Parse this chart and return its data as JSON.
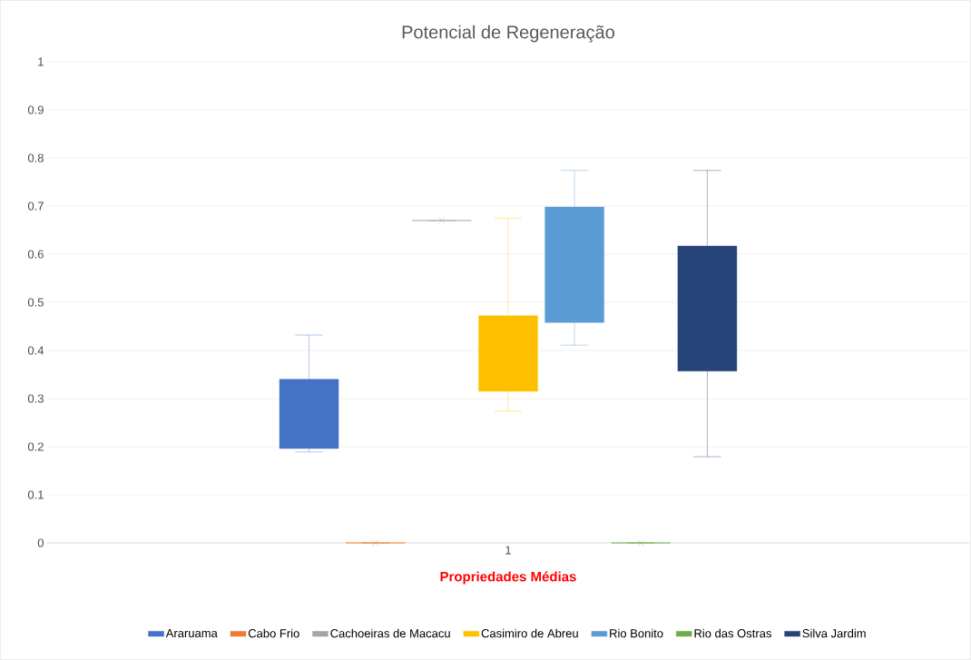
{
  "chart_data": {
    "type": "box",
    "title": "Potencial de Regeneração",
    "xlabel": "Propriedades Médias",
    "categories": [
      "1"
    ],
    "ylim": [
      0,
      1
    ],
    "yticks": [
      0,
      0.1,
      0.2,
      0.3,
      0.4,
      0.5,
      0.6,
      0.7,
      0.8,
      0.9,
      1
    ],
    "grid": "y",
    "legend": "bottom",
    "marker": "cross",
    "series": [
      {
        "name": "Araruama",
        "color": "#4472c4",
        "boxes": [
          {
            "low": 0.189,
            "q1": 0.196,
            "median": 0.277,
            "q3": 0.34,
            "high": 0.432,
            "mean": 0.283
          }
        ]
      },
      {
        "name": "Cabo Frio",
        "color": "#ed7d31",
        "boxes": [
          {
            "low": 0,
            "q1": 0,
            "median": 0,
            "q3": 0,
            "high": 0,
            "mean": 0
          }
        ]
      },
      {
        "name": "Cachoeiras de Macacu",
        "color": "#a5a5a5",
        "boxes": [
          {
            "low": 0.67,
            "q1": 0.67,
            "median": 0.67,
            "q3": 0.67,
            "high": 0.67,
            "mean": 0.67
          }
        ]
      },
      {
        "name": "Casimiro de Abreu",
        "color": "#ffc000",
        "boxes": [
          {
            "low": 0.274,
            "q1": 0.315,
            "median": 0.413,
            "q3": 0.472,
            "high": 0.675,
            "mean": 0.426
          }
        ]
      },
      {
        "name": "Rio Bonito",
        "color": "#5b9bd5",
        "boxes": [
          {
            "low": 0.411,
            "q1": 0.458,
            "median": 0.511,
            "q3": 0.698,
            "high": 0.774,
            "mean": 0.566
          }
        ]
      },
      {
        "name": "Rio das Ostras",
        "color": "#70ad47",
        "boxes": [
          {
            "low": 0,
            "q1": 0,
            "median": 0,
            "q3": 0,
            "high": 0,
            "mean": 0
          }
        ]
      },
      {
        "name": "Silva Jardim",
        "color": "#264478",
        "boxes": [
          {
            "low": 0.179,
            "q1": 0.357,
            "median": 0.462,
            "q3": 0.617,
            "high": 0.774,
            "mean": 0.487
          }
        ]
      }
    ]
  }
}
